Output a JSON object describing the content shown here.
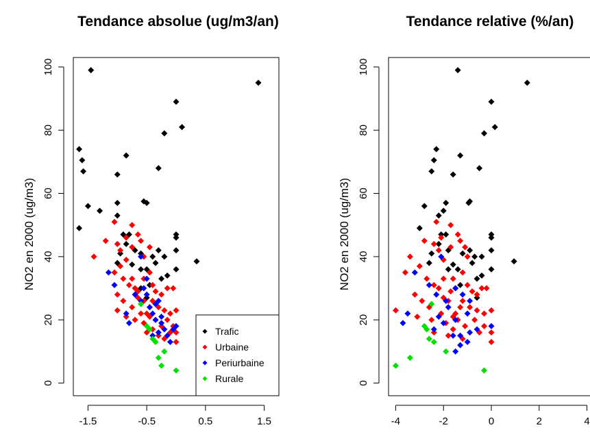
{
  "chart_data": [
    {
      "type": "scatter",
      "title": "Tendance absolue (ug/m3/an)",
      "xlabel": "",
      "ylabel": "NO2 en 2000 (ug/m3)",
      "xticks": [
        "-1.5",
        "-0.5",
        "0.5",
        "1.5"
      ],
      "yticks": [
        "0",
        "20",
        "40",
        "60",
        "80",
        "100"
      ],
      "xlim": [
        -1.75,
        1.75
      ],
      "ylim": [
        -4,
        103
      ],
      "legend_position": "bottom-right",
      "series": [
        {
          "name": "Trafic",
          "color": "#000000",
          "points": [
            [
              -1.45,
              99
            ],
            [
              -1.65,
              74
            ],
            [
              -1.6,
              70.5
            ],
            [
              -1.58,
              67
            ],
            [
              -1.5,
              56
            ],
            [
              -1.65,
              49
            ],
            [
              -1.3,
              54.5
            ],
            [
              -1.0,
              66
            ],
            [
              -0.85,
              72
            ],
            [
              -1.0,
              57
            ],
            [
              -1.0,
              53
            ],
            [
              -0.55,
              57.5
            ],
            [
              -0.5,
              57
            ],
            [
              -0.3,
              68
            ],
            [
              -0.2,
              79
            ],
            [
              0.0,
              89
            ],
            [
              0.1,
              81
            ],
            [
              1.4,
              95
            ],
            [
              -0.9,
              47
            ],
            [
              -0.8,
              47
            ],
            [
              -0.85,
              44
            ],
            [
              -0.7,
              42
            ],
            [
              -0.95,
              41
            ],
            [
              -0.6,
              41
            ],
            [
              -0.3,
              42
            ],
            [
              -0.4,
              40
            ],
            [
              -0.2,
              40
            ],
            [
              0.0,
              47
            ],
            [
              0.0,
              46
            ],
            [
              0.0,
              42
            ],
            [
              0.0,
              36
            ],
            [
              0.35,
              38.5
            ],
            [
              -1.0,
              38
            ],
            [
              -0.75,
              37.5
            ],
            [
              -0.6,
              36
            ],
            [
              -0.5,
              36
            ],
            [
              -0.35,
              38
            ],
            [
              -0.25,
              33
            ],
            [
              -0.45,
              31
            ],
            [
              -0.6,
              30
            ],
            [
              -0.15,
              34
            ],
            [
              -0.5,
              27
            ]
          ]
        },
        {
          "name": "Urbaine",
          "color": "#ff0000",
          "points": [
            [
              -1.4,
              40
            ],
            [
              -1.05,
              51
            ],
            [
              -0.75,
              50
            ],
            [
              -1.2,
              45
            ],
            [
              -1.0,
              44
            ],
            [
              -0.85,
              46
            ],
            [
              -0.95,
              42
            ],
            [
              -0.75,
              43
            ],
            [
              -0.65,
              47
            ],
            [
              -0.6,
              45
            ],
            [
              -0.55,
              40
            ],
            [
              -0.45,
              43
            ],
            [
              -1.05,
              35
            ],
            [
              -0.95,
              37
            ],
            [
              -0.9,
              33
            ],
            [
              -0.8,
              31
            ],
            [
              -0.7,
              30
            ],
            [
              -0.55,
              33
            ],
            [
              -0.45,
              35
            ],
            [
              -0.4,
              31
            ],
            [
              -0.35,
              29
            ],
            [
              -0.25,
              28
            ],
            [
              -0.15,
              30
            ],
            [
              -0.05,
              30
            ],
            [
              -1.0,
              28
            ],
            [
              -0.9,
              26
            ],
            [
              -0.75,
              24
            ],
            [
              -0.65,
              27
            ],
            [
              -0.55,
              26
            ],
            [
              -0.5,
              22
            ],
            [
              -0.45,
              24
            ],
            [
              -0.4,
              26
            ],
            [
              -0.3,
              24
            ],
            [
              -0.2,
              23
            ],
            [
              -0.1,
              22
            ],
            [
              0.0,
              23
            ],
            [
              -1.0,
              23
            ],
            [
              -0.85,
              21
            ],
            [
              -0.7,
              20
            ],
            [
              -0.6,
              22
            ],
            [
              -0.55,
              19
            ],
            [
              -0.45,
              21
            ],
            [
              -0.35,
              20
            ],
            [
              -0.25,
              18
            ],
            [
              -0.15,
              20
            ],
            [
              -0.05,
              18
            ],
            [
              0.0,
              16
            ],
            [
              -0.4,
              17
            ],
            [
              -0.3,
              15
            ],
            [
              -0.5,
              16
            ],
            [
              -0.1,
              16
            ],
            [
              0.0,
              13
            ],
            [
              -0.2,
              14
            ],
            [
              -0.75,
              33
            ],
            [
              -0.65,
              29
            ],
            [
              -0.85,
              39
            ]
          ]
        },
        {
          "name": "Periurbaine",
          "color": "#0000ff",
          "points": [
            [
              -1.15,
              35
            ],
            [
              -0.6,
              40
            ],
            [
              -1.05,
              31
            ],
            [
              -0.85,
              22
            ],
            [
              -0.8,
              19
            ],
            [
              -0.7,
              28
            ],
            [
              -0.6,
              26
            ],
            [
              -0.55,
              30
            ],
            [
              -0.5,
              28
            ],
            [
              -0.45,
              24
            ],
            [
              -0.4,
              22
            ],
            [
              -0.35,
              20
            ],
            [
              -0.3,
              26
            ],
            [
              -0.25,
              19
            ],
            [
              -0.2,
              17
            ],
            [
              -0.15,
              15
            ],
            [
              -0.05,
              17
            ],
            [
              0.0,
              18
            ],
            [
              -0.3,
              16
            ],
            [
              -0.4,
              15
            ],
            [
              -0.1,
              13
            ],
            [
              -0.25,
              21
            ],
            [
              -0.35,
              25
            ],
            [
              -0.5,
              33
            ]
          ]
        },
        {
          "name": "Rurale",
          "color": "#00e000",
          "points": [
            [
              -0.6,
              25
            ],
            [
              -0.5,
              18
            ],
            [
              -0.45,
              17
            ],
            [
              -0.4,
              14
            ],
            [
              -0.35,
              13
            ],
            [
              -0.3,
              8
            ],
            [
              -0.25,
              5.5
            ],
            [
              -0.2,
              10
            ],
            [
              0.0,
              4
            ]
          ]
        }
      ]
    },
    {
      "type": "scatter",
      "title": "Tendance relative (%/an)",
      "xlabel": "",
      "ylabel": "NO2 en 2000 (ug/m3)",
      "xticks": [
        "-4",
        "-2",
        "0",
        "2",
        "4"
      ],
      "yticks": [
        "0",
        "20",
        "40",
        "60",
        "80",
        "100"
      ],
      "xlim": [
        -4.3,
        4.3
      ],
      "ylim": [
        -4,
        103
      ],
      "series": [
        {
          "name": "Trafic",
          "color": "#000000",
          "points": [
            [
              -1.4,
              99
            ],
            [
              -2.3,
              74
            ],
            [
              -2.4,
              70.5
            ],
            [
              -2.5,
              67
            ],
            [
              -2.8,
              56
            ],
            [
              -3.0,
              49
            ],
            [
              -2.0,
              54.5
            ],
            [
              -1.6,
              66
            ],
            [
              -1.3,
              72
            ],
            [
              -1.9,
              57
            ],
            [
              -2.2,
              53
            ],
            [
              -0.9,
              57.5
            ],
            [
              -0.95,
              57
            ],
            [
              -0.5,
              68
            ],
            [
              -0.3,
              79
            ],
            [
              0.0,
              89
            ],
            [
              0.15,
              81
            ],
            [
              1.5,
              95
            ],
            [
              -2.1,
              47
            ],
            [
              -1.9,
              47
            ],
            [
              -2.2,
              44
            ],
            [
              -1.8,
              42
            ],
            [
              -2.5,
              41
            ],
            [
              -1.2,
              41
            ],
            [
              -0.9,
              42
            ],
            [
              -0.7,
              40
            ],
            [
              -0.4,
              40
            ],
            [
              0.0,
              47
            ],
            [
              0.0,
              46
            ],
            [
              0.0,
              42
            ],
            [
              0.0,
              36
            ],
            [
              0.95,
              38.5
            ],
            [
              -2.6,
              38
            ],
            [
              -1.6,
              37.5
            ],
            [
              -1.8,
              36
            ],
            [
              -1.4,
              36
            ],
            [
              -0.8,
              38
            ],
            [
              -0.6,
              33
            ],
            [
              -1.3,
              31
            ],
            [
              -1.5,
              30
            ],
            [
              -0.4,
              34
            ],
            [
              -0.6,
              27
            ]
          ]
        },
        {
          "name": "Urbaine",
          "color": "#ff0000",
          "points": [
            [
              -3.4,
              40
            ],
            [
              -2.3,
              51
            ],
            [
              -1.7,
              50
            ],
            [
              -2.8,
              45
            ],
            [
              -2.4,
              44
            ],
            [
              -2.1,
              46
            ],
            [
              -2.2,
              42
            ],
            [
              -1.7,
              43
            ],
            [
              -1.4,
              47
            ],
            [
              -1.3,
              45
            ],
            [
              -1.0,
              40
            ],
            [
              -1.1,
              43
            ],
            [
              -3.6,
              35
            ],
            [
              -3.0,
              37
            ],
            [
              -2.7,
              33
            ],
            [
              -2.4,
              31
            ],
            [
              -2.2,
              30
            ],
            [
              -1.6,
              33
            ],
            [
              -1.2,
              35
            ],
            [
              -1.0,
              31
            ],
            [
              -0.8,
              29
            ],
            [
              -0.6,
              28
            ],
            [
              -0.4,
              30
            ],
            [
              -0.2,
              30
            ],
            [
              -3.2,
              28
            ],
            [
              -2.9,
              26
            ],
            [
              -2.6,
              24
            ],
            [
              -2.0,
              27
            ],
            [
              -1.8,
              26
            ],
            [
              -1.5,
              22
            ],
            [
              -1.3,
              24
            ],
            [
              -1.2,
              26
            ],
            [
              -0.9,
              24
            ],
            [
              -0.6,
              23
            ],
            [
              -0.3,
              22
            ],
            [
              0.0,
              23
            ],
            [
              -4.0,
              23
            ],
            [
              -3.1,
              21
            ],
            [
              -2.5,
              20
            ],
            [
              -2.1,
              22
            ],
            [
              -1.9,
              19
            ],
            [
              -1.6,
              21
            ],
            [
              -1.4,
              20
            ],
            [
              -1.1,
              18
            ],
            [
              -0.7,
              20
            ],
            [
              -0.3,
              18
            ],
            [
              0.0,
              16
            ],
            [
              -1.6,
              17
            ],
            [
              -1.8,
              15
            ],
            [
              -2.4,
              16
            ],
            [
              -0.5,
              16
            ],
            [
              0.0,
              13
            ],
            [
              -1.2,
              14
            ],
            [
              -2.0,
              33
            ],
            [
              -1.7,
              29
            ],
            [
              -2.0,
              39
            ]
          ]
        },
        {
          "name": "Periurbaine",
          "color": "#0000ff",
          "points": [
            [
              -3.2,
              35
            ],
            [
              -2.1,
              40
            ],
            [
              -2.6,
              31
            ],
            [
              -3.5,
              22
            ],
            [
              -3.7,
              19
            ],
            [
              -2.3,
              28
            ],
            [
              -1.9,
              26
            ],
            [
              -1.5,
              30
            ],
            [
              -1.2,
              28
            ],
            [
              -1.8,
              24
            ],
            [
              -1.0,
              22
            ],
            [
              -1.5,
              20
            ],
            [
              -0.9,
              26
            ],
            [
              -2.0,
              19
            ],
            [
              -2.4,
              17
            ],
            [
              -1.3,
              15
            ],
            [
              -0.6,
              17
            ],
            [
              0.0,
              18
            ],
            [
              -0.9,
              16
            ],
            [
              -1.6,
              15
            ],
            [
              -1.0,
              13
            ],
            [
              -1.3,
              12
            ],
            [
              -1.5,
              10
            ],
            [
              -2.2,
              21
            ]
          ]
        },
        {
          "name": "Rurale",
          "color": "#00e000",
          "points": [
            [
              -4.0,
              5.5
            ],
            [
              -3.4,
              8
            ],
            [
              -2.5,
              25
            ],
            [
              -2.8,
              18
            ],
            [
              -2.7,
              17
            ],
            [
              -2.6,
              14
            ],
            [
              -2.4,
              13
            ],
            [
              -1.9,
              10
            ],
            [
              -0.3,
              4
            ]
          ]
        }
      ]
    }
  ]
}
